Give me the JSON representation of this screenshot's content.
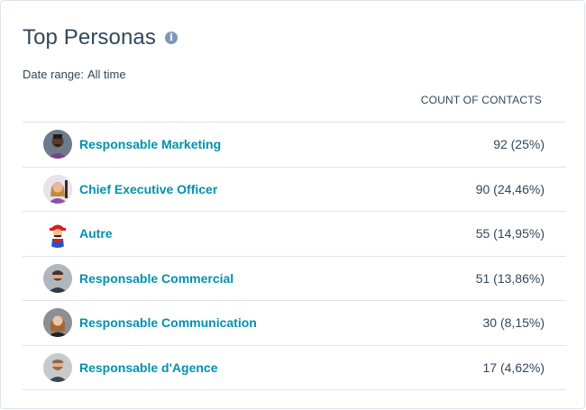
{
  "header": {
    "title": "Top Personas",
    "info_icon": "info-icon"
  },
  "filters": {
    "date_range_label": "Date range:",
    "date_range_value": "All time"
  },
  "table": {
    "column_header": "COUNT OF CONTACTS",
    "rows": [
      {
        "persona": "Responsable Marketing",
        "count": "92 (25%)"
      },
      {
        "persona": "Chief Executive Officer",
        "count": "90 (24,46%)"
      },
      {
        "persona": "Autre",
        "count": "55 (14,95%)"
      },
      {
        "persona": "Responsable Commercial",
        "count": "51 (13,86%)"
      },
      {
        "persona": "Responsable Communication",
        "count": "30 (8,15%)"
      },
      {
        "persona": "Responsable d'Agence",
        "count": "17 (4,62%)"
      }
    ]
  },
  "colors": {
    "link": "#0091ae",
    "text": "#33475b",
    "border": "#dfe3eb",
    "info_icon": "#7c98b6"
  }
}
